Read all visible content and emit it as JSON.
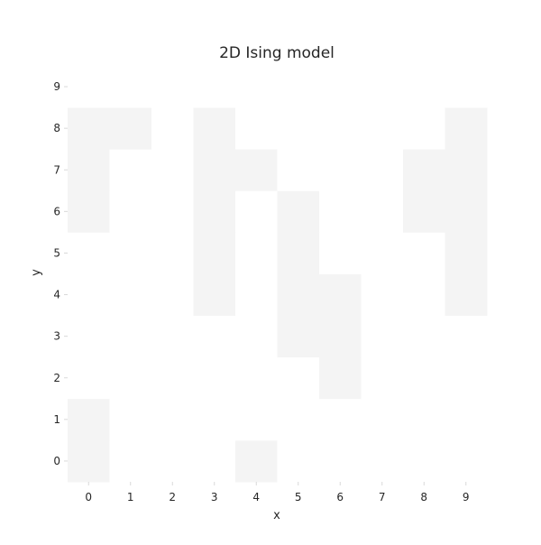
{
  "chart_data": {
    "type": "heatmap",
    "title": "2D Ising model",
    "xlabel": "x",
    "ylabel": "y",
    "x": [
      0,
      1,
      2,
      3,
      4,
      5,
      6,
      7,
      8,
      9
    ],
    "y": [
      0,
      1,
      2,
      3,
      4,
      5,
      6,
      7,
      8,
      9
    ],
    "x_tick_labels": [
      "0",
      "1",
      "2",
      "3",
      "4",
      "5",
      "6",
      "7",
      "8",
      "9"
    ],
    "y_tick_labels": [
      "0",
      "1",
      "2",
      "3",
      "4",
      "5",
      "6",
      "7",
      "8",
      "9"
    ],
    "xlim": [
      -0.5,
      9.5
    ],
    "ylim": [
      -0.5,
      9.5
    ],
    "grid": false,
    "legend": "none",
    "spin_colors": {
      "up": "#f4f4f4",
      "down": "#ffffff"
    },
    "spins": [
      [
        1,
        0,
        0,
        0,
        1,
        0,
        0,
        0,
        0,
        0
      ],
      [
        1,
        0,
        0,
        0,
        0,
        0,
        0,
        0,
        0,
        0
      ],
      [
        0,
        0,
        0,
        0,
        0,
        0,
        1,
        0,
        0,
        0
      ],
      [
        0,
        0,
        0,
        0,
        0,
        1,
        1,
        0,
        0,
        0
      ],
      [
        0,
        0,
        0,
        1,
        0,
        1,
        1,
        0,
        0,
        1
      ],
      [
        0,
        0,
        0,
        1,
        0,
        1,
        0,
        0,
        0,
        1
      ],
      [
        1,
        0,
        0,
        1,
        0,
        1,
        0,
        0,
        1,
        1
      ],
      [
        1,
        0,
        0,
        1,
        1,
        0,
        0,
        0,
        1,
        1
      ],
      [
        1,
        1,
        0,
        1,
        0,
        0,
        0,
        0,
        0,
        1
      ],
      [
        0,
        0,
        0,
        0,
        0,
        0,
        0,
        0,
        0,
        0
      ]
    ]
  }
}
